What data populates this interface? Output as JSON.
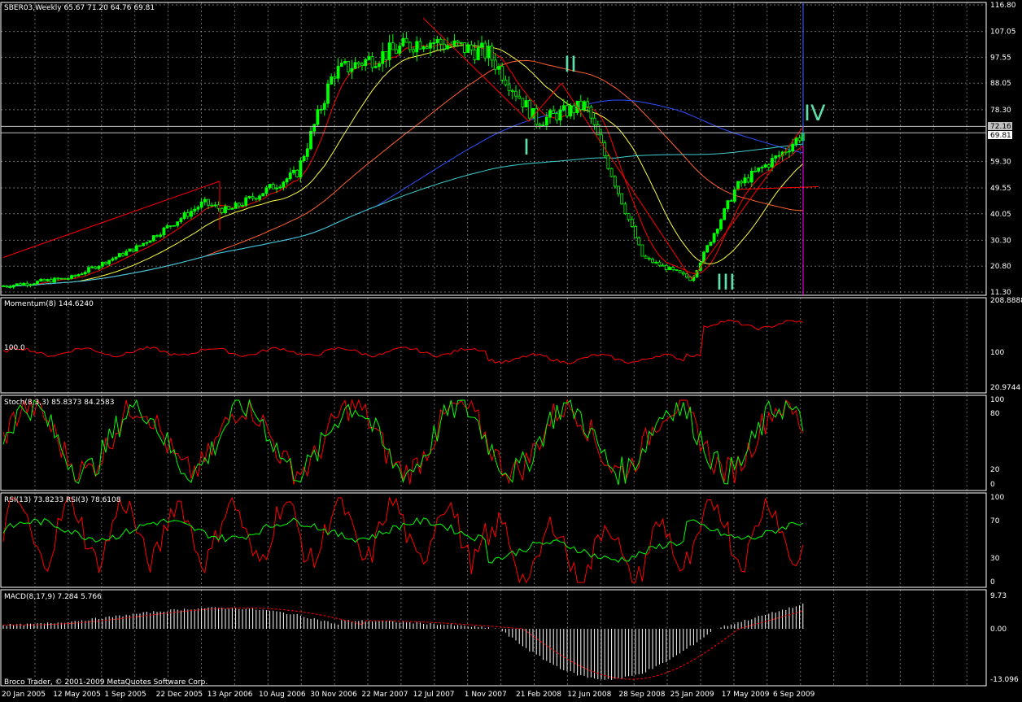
{
  "window": {
    "title": "SBER03,Weekly  65.67 71.20 64.76 69.81"
  },
  "copyright": "Broco Trader, © 2001-2009 MetaQuotes Software Corp.",
  "current_price": {
    "price_a": "72.16",
    "price_b": "69.81"
  },
  "wave_labels": {
    "w1": "I",
    "w2": "II",
    "w3": "III",
    "w4": "IV"
  },
  "panels": {
    "main": {
      "ticks": [
        "116.80",
        "107.05",
        "97.55",
        "88.05",
        "78.30",
        "59.30",
        "49.55",
        "40.05",
        "30.30",
        "20.80",
        "11.30"
      ]
    },
    "momentum": {
      "label": "Momentum(8) 144.6240",
      "level_label": "100.0",
      "ticks": [
        "208.8888",
        "100",
        "20.9744"
      ]
    },
    "stoch": {
      "label": "Stoch(8,3,3) 85.8373 84.2583",
      "ticks": [
        "100",
        "80",
        "20",
        "0"
      ]
    },
    "rsi": {
      "label": "RSI(13) 73.8233  RSI(3) 78.6108",
      "ticks": [
        "100",
        "70",
        "30",
        "0"
      ]
    },
    "macd": {
      "label": "MACD(8,17,9) 7.284 5.766",
      "ticks": [
        "9.73",
        "0.00",
        "-13.096"
      ]
    }
  },
  "x_axis": [
    "20 Jan 2005",
    "12 May 2005",
    "1 Sep 2005",
    "22 Dec 2005",
    "13 Apr 2006",
    "10 Aug 2006",
    "30 Nov 2006",
    "22 Mar 2007",
    "12 Jul 2007",
    "1 Nov 2007",
    "21 Feb 2008",
    "12 Jun 2008",
    "28 Sep 2008",
    "25 Jan 2009",
    "17 May 2009",
    "6 Sep 2009"
  ],
  "colors": {
    "background": "#000000",
    "grid": "#c0c0c0",
    "candle": "#00ff00",
    "ma_red": "#ff0000",
    "ma_yellow": "#ffff40",
    "ma_orange": "#ff6030",
    "ma_blue": "#3050ff",
    "ma_cyan": "#40d0d0",
    "indicator_red": "#ff0000",
    "indicator_green": "#00ff00",
    "vline_blue": "#4060ff",
    "vline_magenta": "#ff00ff",
    "wave_label": "#5fe0a8"
  },
  "chart_data": {
    "type": "candlestick",
    "symbol": "SBER03",
    "timeframe": "Weekly",
    "last_bar": {
      "open": 65.67,
      "high": 71.2,
      "low": 64.76,
      "close": 69.81
    },
    "ylim": [
      11.3,
      116.8
    ],
    "close_series": [
      {
        "date": "20 Jan 2005",
        "close": 13.5
      },
      {
        "date": "12 May 2005",
        "close": 16.5
      },
      {
        "date": "1 Sep 2005",
        "close": 28.0
      },
      {
        "date": "22 Dec 2005",
        "close": 44.0
      },
      {
        "date": "13 Apr 2006",
        "close": 41.0
      },
      {
        "date": "10 Aug 2006",
        "close": 55.0
      },
      {
        "date": "30 Nov 2006",
        "close": 92.0
      },
      {
        "date": "22 Mar 2007",
        "close": 99.0
      },
      {
        "date": "12 Jul 2007",
        "close": 104.0
      },
      {
        "date": "1 Nov 2007",
        "close": 99.0
      },
      {
        "date": "21 Feb 2008",
        "close": 74.0
      },
      {
        "date": "12 Jun 2008",
        "close": 80.0
      },
      {
        "date": "28 Sep 2008",
        "close": 24.0
      },
      {
        "date": "25 Jan 2009",
        "close": 16.0
      },
      {
        "date": "17 May 2009",
        "close": 50.0
      },
      {
        "date": "6 Sep 2009",
        "close": 62.0
      },
      {
        "date": "last",
        "close": 69.81
      }
    ],
    "indicators": {
      "momentum_8": 144.624,
      "stoch_8_3_3": [
        85.8373,
        84.2583
      ],
      "rsi_13": 73.8233,
      "rsi_3": 78.6108,
      "macd_8_17_9": [
        7.284,
        5.766
      ]
    }
  }
}
